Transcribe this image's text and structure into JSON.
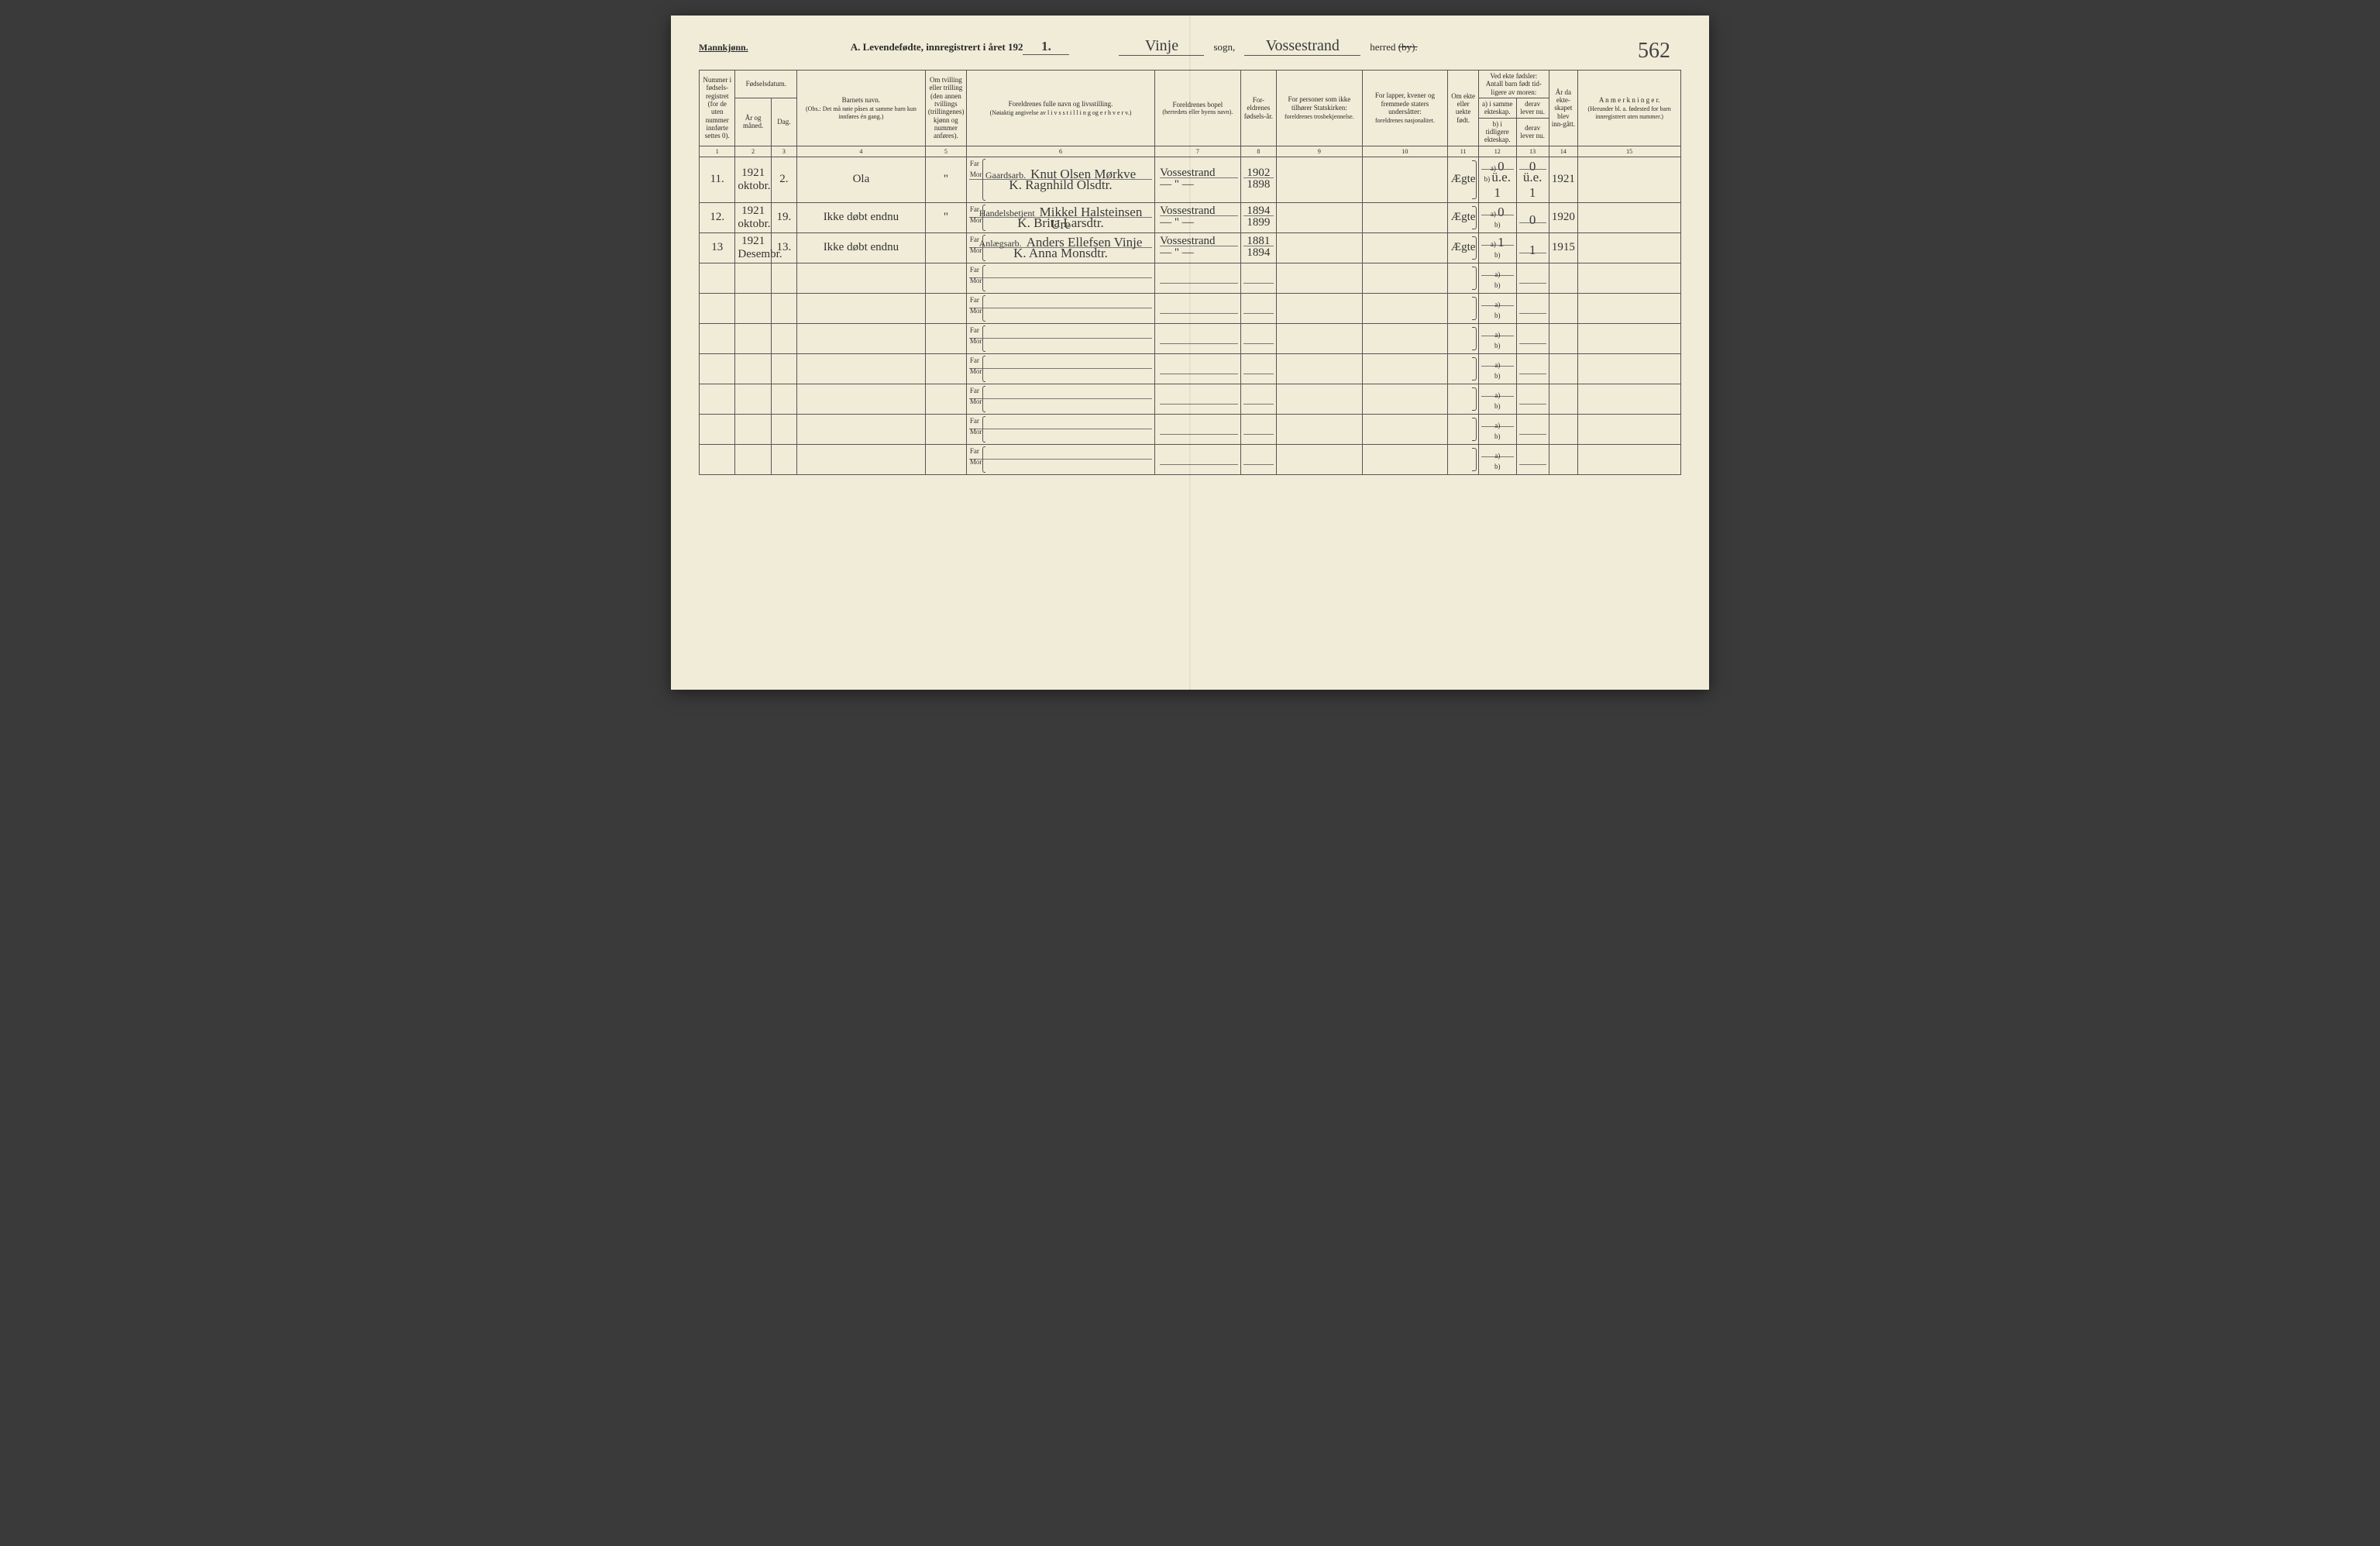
{
  "page": {
    "gender_label": "Mannkjønn.",
    "section_title": "A.  Levendefødte, innregistrert i året 192",
    "year_suffix": "1.",
    "sogn_hand": "Vinje",
    "sogn_label": "sogn,",
    "herred_hand": "Vossestrand",
    "herred_label_prefix": "herred ",
    "herred_label_by": "(by).",
    "page_number": "562"
  },
  "headers": {
    "c1": "Nummer i fødsels-registret (for de uten nummer innførte settes 0).",
    "c2top": "Fødselsdatum.",
    "c2a": "År og måned.",
    "c2b": "Dag.",
    "c4a": "Barnets navn.",
    "c4b": "(Obs.: Det må nøie påses at samme barn kun innføres én gang.)",
    "c5": "Om tvilling eller trilling (den annen tvillings (trillingenes) kjønn og nummer anføres).",
    "c6a": "Foreldrenes fulle navn og livsstilling.",
    "c6b": "(Nøiaktig angivelse av  l i v s s t i l l i n g  og  e r h v e r v.)",
    "c7a": "Foreldrenes bopel",
    "c7b": "(herredets eller byens navn).",
    "c8": "For-eldrenes fødsels-år.",
    "c9a": "For personer som ikke tilhører Statskirken:",
    "c9b": "foreldrenes trosbekjennelse.",
    "c10a": "For lapper, kvener og fremmede staters undersåtter:",
    "c10b": "foreldrenes nasjonalitet.",
    "c11": "Om ekte eller uekte født.",
    "c12top": "Ved ekte fødsler: Antall barn født tid-ligere av moren:",
    "c12a": "a) i samme ekteskap.",
    "c12b": "b) i tidligere ekteskap.",
    "c13a": "derav lever nu.",
    "c13b": "derav lever nu.",
    "c14": "År da ekte-skapet blev inn-gått.",
    "c15a": "A n m e r k n i n g e r.",
    "c15b": "(Herunder bl. a. fødested for barn innregistrert uten nummer.)",
    "far": "Far",
    "mor": "Mor",
    "a": "a)",
    "b": "b)"
  },
  "colnums": [
    "1",
    "2",
    "3",
    "4",
    "5",
    "6",
    "7",
    "8",
    "9",
    "10",
    "11",
    "12",
    "13",
    "14",
    "15"
  ],
  "rows": [
    {
      "num": "11.",
      "year_month": "1921 oktobr.",
      "day": "2.",
      "child": "Ola",
      "twin": "\"",
      "far_occ": "Gaardsarb.",
      "far": "Knut Olsen Mørkve",
      "mor": "K. Ragnhild Olsdtr.",
      "bopel_far": "Vossestrand",
      "bopel_mor": "— \" —",
      "fy_far": "1902",
      "fy_mor": "1898",
      "ekte": "Ægte",
      "a_val": "0",
      "b_val": "ü.e. 1",
      "a_lev": "0",
      "b_lev": "ü.e. 1",
      "marr": "1921"
    },
    {
      "num": "12.",
      "year_month": "1921 oktobr.",
      "day": "19.",
      "child": "Ikke døbt endnu",
      "twin": "\"",
      "far_occ": "Handelsbetjent",
      "far": "Mikkel Halsteinsen Ure",
      "mor": "K. Brita Larsdtr.",
      "bopel_far": "Vossestrand",
      "bopel_mor": "— \" —",
      "fy_far": "1894",
      "fy_mor": "1899",
      "ekte": "Ægte",
      "a_val": "0",
      "b_val": "",
      "a_lev": "0",
      "b_lev": "",
      "marr": "1920"
    },
    {
      "num": "13",
      "year_month": "1921 Desembr.",
      "day": "13.",
      "child": "Ikke døbt endnu",
      "twin": "",
      "far_occ": "Anlægsarb.",
      "far": "Anders Ellefsen Vinje",
      "mor": "K. Anna Monsdtr.",
      "bopel_far": "Vossestrand",
      "bopel_mor": "— \" —",
      "fy_far": "1881",
      "fy_mor": "1894",
      "ekte": "Ægte",
      "a_val": "1",
      "b_val": "",
      "a_lev": "1",
      "b_lev": "",
      "marr": "1915"
    }
  ],
  "empty_rows": 7
}
